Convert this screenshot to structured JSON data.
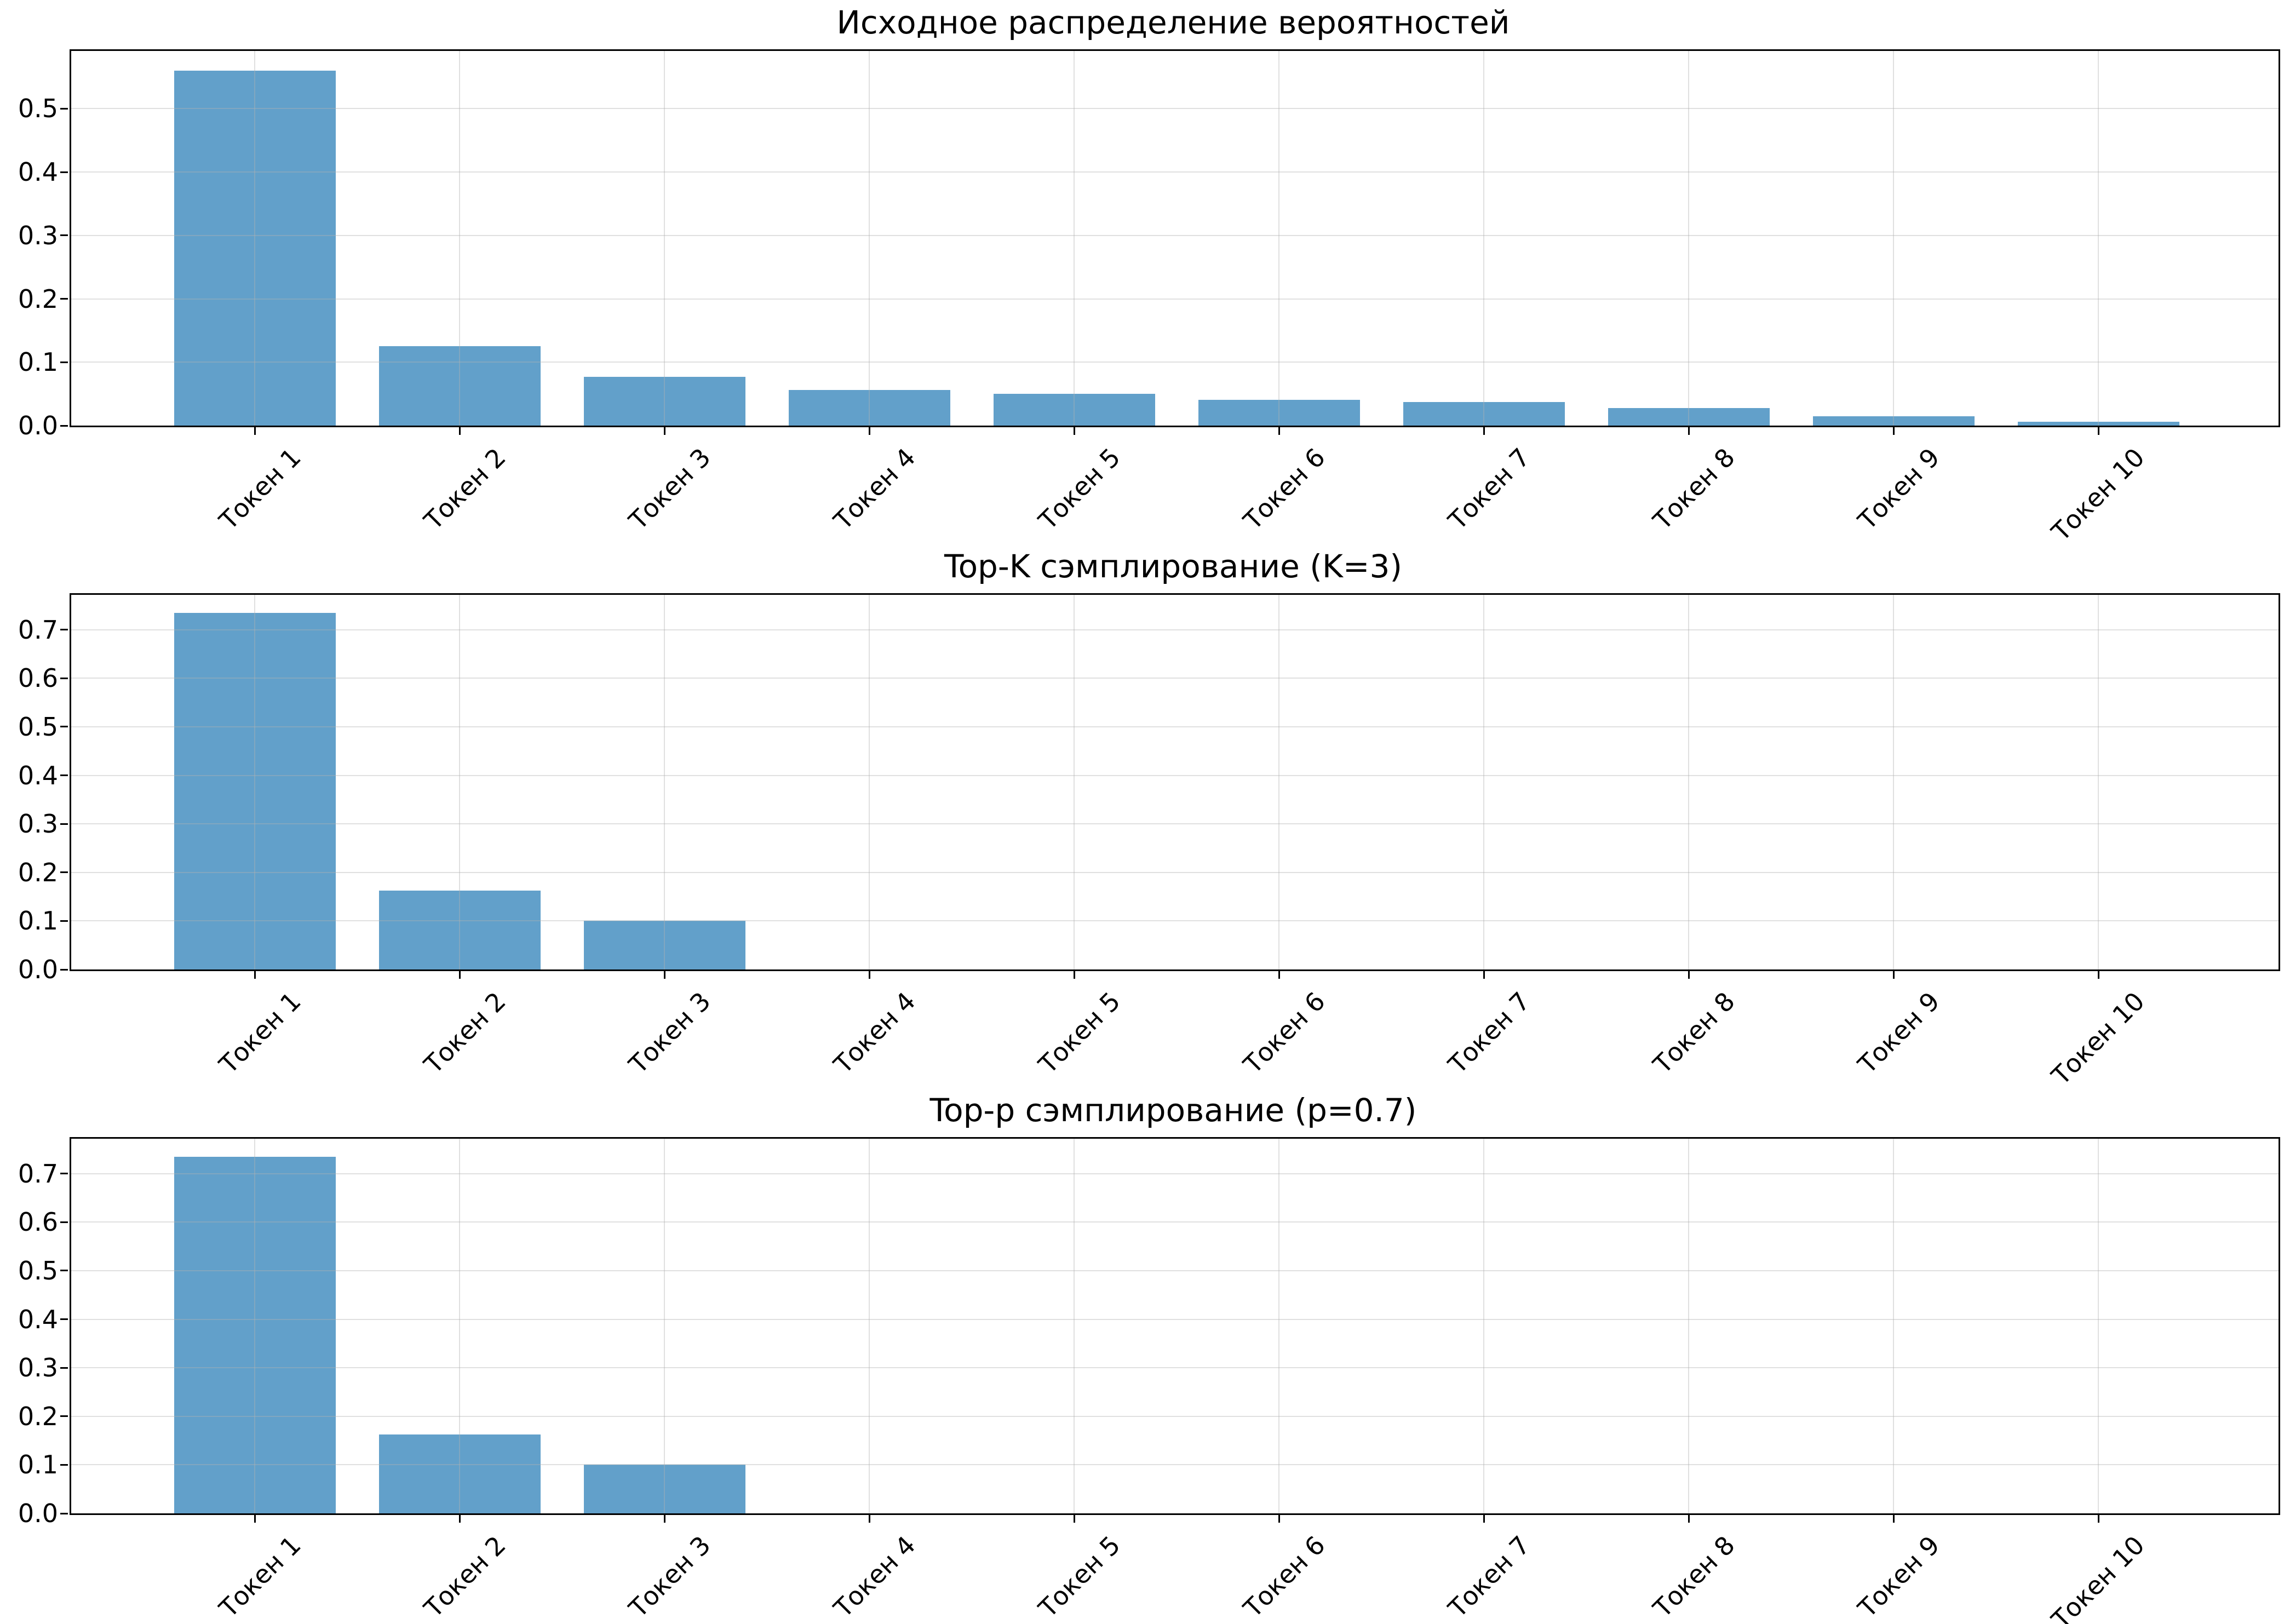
{
  "figure": {
    "background": "#ffffff",
    "bar_color": "#62a0ca",
    "grid_color": "rgba(178,178,178,0.40)",
    "spine_color": "#000000",
    "text_color": "#000000"
  },
  "chart_data": [
    {
      "type": "bar",
      "title": "Исходное распределение вероятностей",
      "categories": [
        "Токен 1",
        "Токен 2",
        "Токен 3",
        "Токен 4",
        "Токен 5",
        "Токен 6",
        "Токен 7",
        "Токен 8",
        "Токен 9",
        "Токен 10"
      ],
      "values": [
        0.56,
        0.125,
        0.077,
        0.056,
        0.05,
        0.041,
        0.037,
        0.028,
        0.015,
        0.006
      ],
      "xlabel": "",
      "ylabel": "",
      "ylim": [
        0,
        0.591
      ],
      "yticks": [
        0.0,
        0.1,
        0.2,
        0.3,
        0.4,
        0.5
      ],
      "grid": true,
      "legend": "none",
      "xticklabel_rotation": 45
    },
    {
      "type": "bar",
      "title": "Top-K сэмплирование (K=3)",
      "categories": [
        "Токен 1",
        "Токен 2",
        "Токен 3",
        "Токен 4",
        "Токен 5",
        "Токен 6",
        "Токен 7",
        "Токен 8",
        "Токен 9",
        "Токен 10"
      ],
      "values": [
        0.735,
        0.163,
        0.1,
        0,
        0,
        0,
        0,
        0,
        0,
        0
      ],
      "xlabel": "",
      "ylabel": "",
      "ylim": [
        0,
        0.772
      ],
      "yticks": [
        0.0,
        0.1,
        0.2,
        0.3,
        0.4,
        0.5,
        0.6,
        0.7
      ],
      "grid": true,
      "legend": "none",
      "xticklabel_rotation": 45
    },
    {
      "type": "bar",
      "title": "Top-p сэмплирование (p=0.7)",
      "categories": [
        "Токен 1",
        "Токен 2",
        "Токен 3",
        "Токен 4",
        "Токен 5",
        "Токен 6",
        "Токен 7",
        "Токен 8",
        "Токен 9",
        "Токен 10"
      ],
      "values": [
        0.735,
        0.163,
        0.1,
        0,
        0,
        0,
        0,
        0,
        0,
        0
      ],
      "xlabel": "",
      "ylabel": "",
      "ylim": [
        0,
        0.772
      ],
      "yticks": [
        0.0,
        0.1,
        0.2,
        0.3,
        0.4,
        0.5,
        0.6,
        0.7
      ],
      "grid": true,
      "legend": "none",
      "xticklabel_rotation": 45
    }
  ]
}
